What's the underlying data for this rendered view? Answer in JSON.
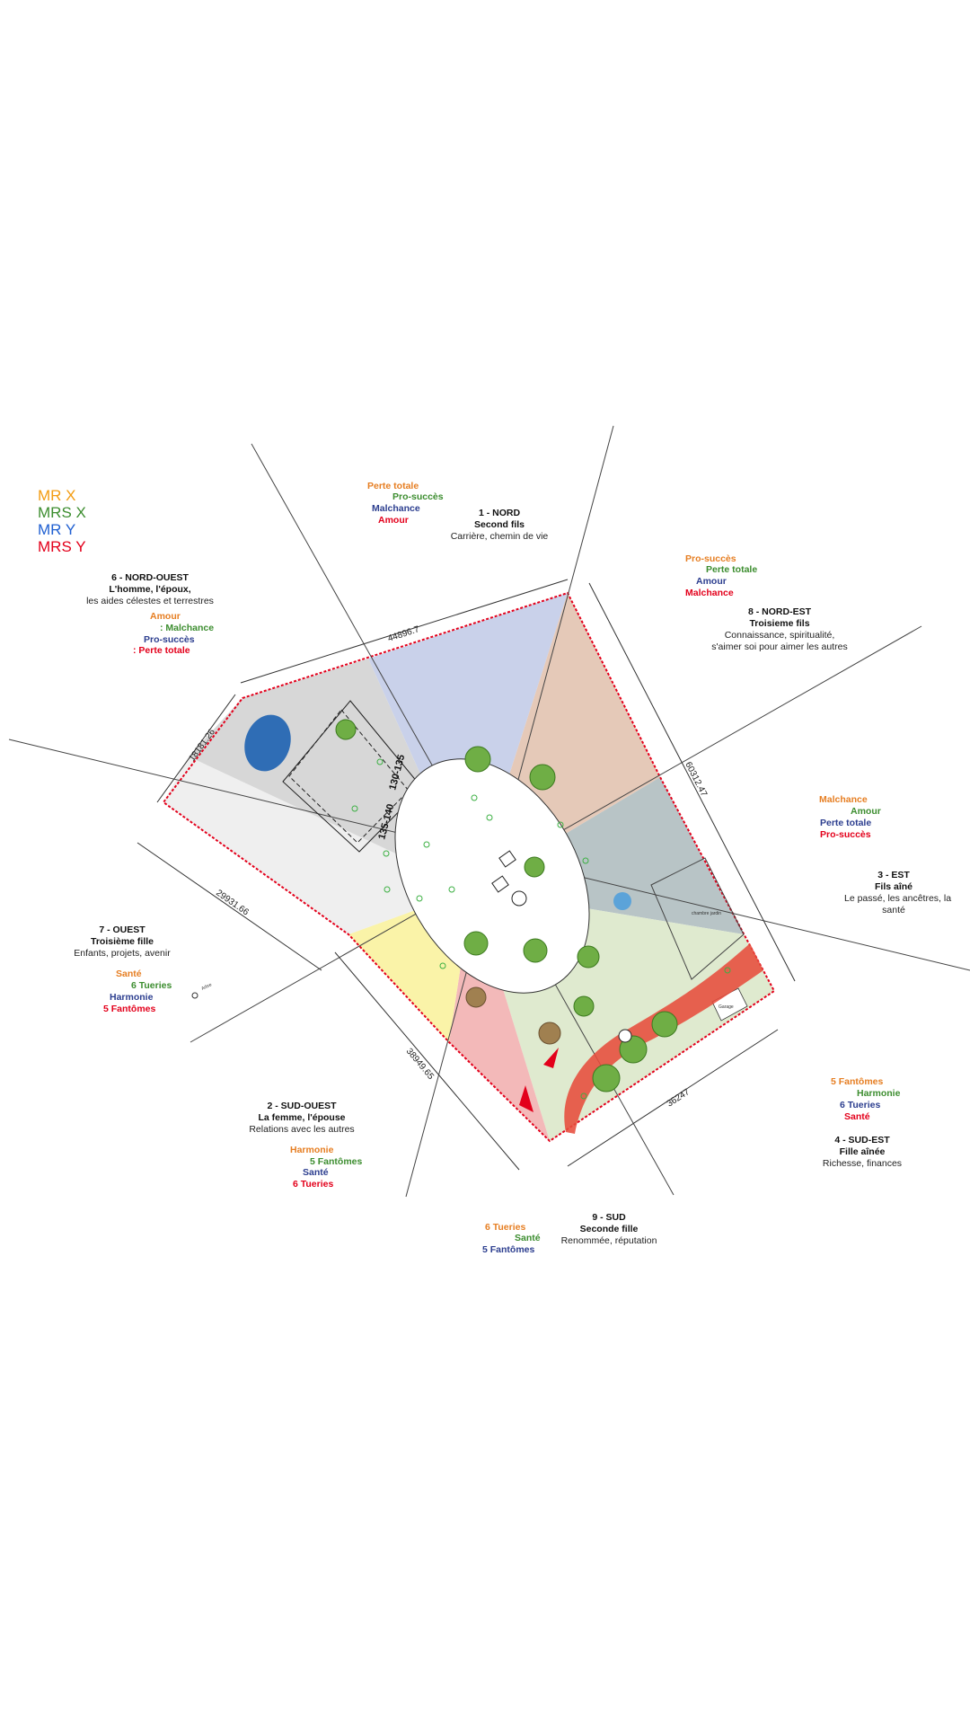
{
  "legend": {
    "mr_x": "MR X",
    "mrs_x": "MRS X",
    "mr_y": "MR Y",
    "mrs_y": "MRS Y"
  },
  "colors": {
    "mr_x": "#f39c12",
    "mrs_x": "#3c8d2f",
    "mr_y": "#1f5fd1",
    "mrs_y": "#e3001b",
    "north": "#c9d1ea",
    "northeast": "#e5c9b8",
    "east": "#b8c4c6",
    "southeast": "#dfeacf",
    "south": "#f3b9b9",
    "southwest": "#faf3a8",
    "west": "#efefef",
    "northwest": "#d7d7d7"
  },
  "sectors": {
    "nord": {
      "title": "1 - NORD",
      "role": "Second fils",
      "desc": "Carrière, chemin de vie",
      "stats": [
        "Perte totale",
        "Pro-succès",
        "Malchance",
        "Amour"
      ]
    },
    "nord_est": {
      "title": "8 - NORD-EST",
      "role": "Troisieme fils",
      "desc1": "Connaissance, spiritualité,",
      "desc2": "s'aimer soi pour aimer les autres",
      "stats": [
        "Pro-succès",
        "Perte totale",
        "Amour",
        "Malchance"
      ]
    },
    "est": {
      "title": "3 - EST",
      "role": "Fils aîné",
      "desc1": "Le passé, les ancêtres, la",
      "desc2": "santé",
      "stats": [
        "Malchance",
        "Amour",
        "Perte totale",
        "Pro-succès"
      ]
    },
    "sud_est": {
      "title": "4 - SUD-EST",
      "role": "Fille aînée",
      "desc": "Richesse, finances",
      "stats": [
        "5 Fantômes",
        "Harmonie",
        "6 Tueries",
        "Santé"
      ]
    },
    "sud": {
      "title": "9 - SUD",
      "role": "Seconde fille",
      "desc": "Renommée, réputation",
      "stats": [
        "6 Tueries",
        "Santé",
        "5 Fantômes"
      ]
    },
    "sud_ouest": {
      "title": "2 - SUD-OUEST",
      "role": "La femme, l'épouse",
      "desc": "Relations avec les autres",
      "stats": [
        "Harmonie",
        "5 Fantômes",
        "Santé",
        "6 Tueries"
      ]
    },
    "ouest": {
      "title": "7 - OUEST",
      "role": "Troisième fille",
      "desc": "Enfants, projets, avenir",
      "stats": [
        "Santé",
        "6 Tueries",
        "Harmonie",
        "5 Fantômes"
      ]
    },
    "nord_ouest": {
      "title": "6 - NORD-OUEST",
      "role": "L'homme, l'époux,",
      "desc": "les aides célestes et terrestres",
      "stats": [
        "Amour",
        ": Malchance",
        "Pro-succès",
        ": Perte totale"
      ]
    }
  },
  "dimensions": {
    "top": "44896.7",
    "left": "18181.26",
    "right": "60312.47",
    "west_bottom": "29931.66",
    "south_west": "38949.65",
    "south": "36247",
    "room_a": "130-135",
    "room_b": "135-140"
  },
  "plan_labels": {
    "garage": "Garage",
    "shed": "chambre jardin",
    "tree": "Arbre"
  }
}
